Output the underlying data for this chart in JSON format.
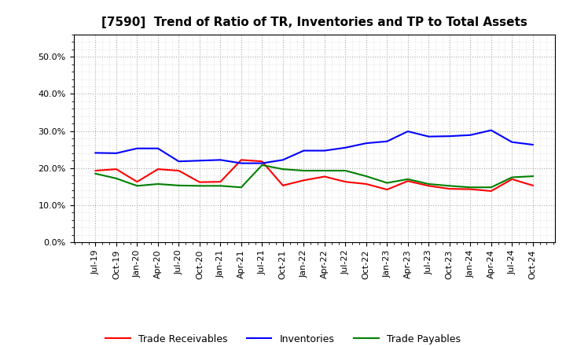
{
  "title": "[7590]  Trend of Ratio of TR, Inventories and TP to Total Assets",
  "x_labels": [
    "Jul-19",
    "Oct-19",
    "Jan-20",
    "Apr-20",
    "Jul-20",
    "Oct-20",
    "Jan-21",
    "Apr-21",
    "Jul-21",
    "Oct-21",
    "Jan-22",
    "Apr-22",
    "Jul-22",
    "Oct-22",
    "Jan-23",
    "Apr-23",
    "Jul-23",
    "Oct-23",
    "Jan-24",
    "Apr-24",
    "Jul-24",
    "Oct-24"
  ],
  "trade_receivables": [
    0.193,
    0.197,
    0.163,
    0.197,
    0.193,
    0.162,
    0.163,
    0.222,
    0.218,
    0.153,
    0.167,
    0.177,
    0.163,
    0.157,
    0.142,
    0.165,
    0.152,
    0.144,
    0.143,
    0.138,
    0.17,
    0.153
  ],
  "inventories": [
    0.241,
    0.24,
    0.253,
    0.253,
    0.218,
    0.22,
    0.222,
    0.213,
    0.213,
    0.222,
    0.247,
    0.247,
    0.255,
    0.267,
    0.272,
    0.299,
    0.285,
    0.286,
    0.289,
    0.302,
    0.27,
    0.263
  ],
  "trade_payables": [
    0.185,
    0.172,
    0.152,
    0.157,
    0.153,
    0.152,
    0.152,
    0.148,
    0.208,
    0.197,
    0.193,
    0.193,
    0.193,
    0.178,
    0.16,
    0.17,
    0.157,
    0.152,
    0.148,
    0.148,
    0.175,
    0.178
  ],
  "colors": {
    "trade_receivables": "#FF0000",
    "inventories": "#0000FF",
    "trade_payables": "#008000"
  },
  "ylim": [
    0.0,
    0.56
  ],
  "yticks": [
    0.0,
    0.1,
    0.2,
    0.3,
    0.4,
    0.5
  ],
  "background_color": "#FFFFFF",
  "plot_bg_color": "#FFFFFF",
  "grid_color": "#AAAAAA",
  "legend_labels": [
    "Trade Receivables",
    "Inventories",
    "Trade Payables"
  ],
  "title_fontsize": 11,
  "tick_fontsize": 8,
  "legend_fontsize": 9
}
